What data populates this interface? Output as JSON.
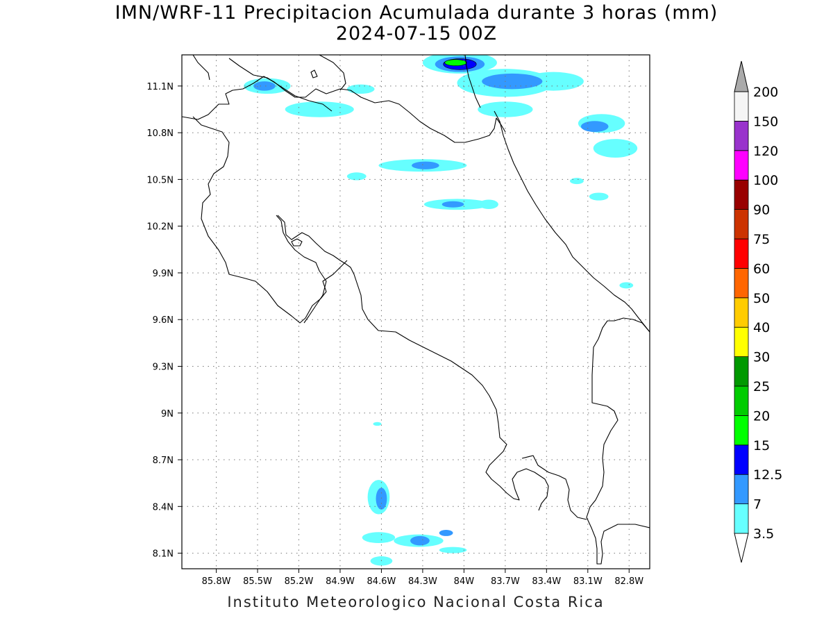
{
  "title": "IMN/WRF-11 Precipitacion Acumulada durante 3 horas (mm)",
  "subtitle": "2024-07-15 00Z",
  "credit": "Instituto Meteorologico Nacional Costa Rica",
  "map": {
    "lon_range": [
      -86.05,
      -82.65
    ],
    "lat_range": [
      8.0,
      11.3
    ],
    "lon_ticks": [
      {
        "value": -85.8,
        "label": "85.8W"
      },
      {
        "value": -85.5,
        "label": "85.5W"
      },
      {
        "value": -85.2,
        "label": "85.2W"
      },
      {
        "value": -84.9,
        "label": "84.9W"
      },
      {
        "value": -84.6,
        "label": "84.6W"
      },
      {
        "value": -84.3,
        "label": "84.3W"
      },
      {
        "value": -84.0,
        "label": "84W"
      },
      {
        "value": -83.7,
        "label": "83.7W"
      },
      {
        "value": -83.4,
        "label": "83.4W"
      },
      {
        "value": -83.1,
        "label": "83.1W"
      },
      {
        "value": -82.8,
        "label": "82.8W"
      }
    ],
    "lat_ticks": [
      {
        "value": 8.1,
        "label": "8.1N"
      },
      {
        "value": 8.4,
        "label": "8.4N"
      },
      {
        "value": 8.7,
        "label": "8.7N"
      },
      {
        "value": 9.0,
        "label": "9N"
      },
      {
        "value": 9.3,
        "label": "9.3N"
      },
      {
        "value": 9.6,
        "label": "9.6N"
      },
      {
        "value": 9.9,
        "label": "9.9N"
      },
      {
        "value": 10.2,
        "label": "10.2N"
      },
      {
        "value": 10.5,
        "label": "10.5N"
      },
      {
        "value": 10.8,
        "label": "10.8N"
      },
      {
        "value": 11.1,
        "label": "11.1N"
      }
    ],
    "grid": true,
    "coastline_color": "#000000",
    "precip_cells": [
      {
        "lon": -84.03,
        "lat": 11.25,
        "rx": 0.27,
        "ry": 0.07,
        "level": 1
      },
      {
        "lon": -83.7,
        "lat": 11.12,
        "rx": 0.35,
        "ry": 0.09,
        "level": 1
      },
      {
        "lon": -83.35,
        "lat": 11.13,
        "rx": 0.22,
        "ry": 0.06,
        "level": 1
      },
      {
        "lon": -83.0,
        "lat": 10.86,
        "rx": 0.17,
        "ry": 0.06,
        "level": 1
      },
      {
        "lon": -82.9,
        "lat": 10.7,
        "rx": 0.16,
        "ry": 0.06,
        "level": 1
      },
      {
        "lon": -83.7,
        "lat": 10.95,
        "rx": 0.2,
        "ry": 0.05,
        "level": 1
      },
      {
        "lon": -85.43,
        "lat": 11.1,
        "rx": 0.17,
        "ry": 0.05,
        "level": 1
      },
      {
        "lon": -85.05,
        "lat": 10.95,
        "rx": 0.25,
        "ry": 0.05,
        "level": 1
      },
      {
        "lon": -84.75,
        "lat": 11.08,
        "rx": 0.1,
        "ry": 0.03,
        "level": 1
      },
      {
        "lon": -84.3,
        "lat": 10.59,
        "rx": 0.32,
        "ry": 0.04,
        "level": 1
      },
      {
        "lon": -84.78,
        "lat": 10.52,
        "rx": 0.07,
        "ry": 0.025,
        "level": 1
      },
      {
        "lon": -84.05,
        "lat": 10.34,
        "rx": 0.24,
        "ry": 0.035,
        "level": 1
      },
      {
        "lon": -83.82,
        "lat": 10.34,
        "rx": 0.07,
        "ry": 0.03,
        "level": 1
      },
      {
        "lon": -83.18,
        "lat": 10.49,
        "rx": 0.05,
        "ry": 0.02,
        "level": 1
      },
      {
        "lon": -83.02,
        "lat": 10.39,
        "rx": 0.07,
        "ry": 0.025,
        "level": 1
      },
      {
        "lon": -82.82,
        "lat": 9.82,
        "rx": 0.05,
        "ry": 0.02,
        "level": 1
      },
      {
        "lon": -84.62,
        "lat": 8.46,
        "rx": 0.08,
        "ry": 0.11,
        "level": 1
      },
      {
        "lon": -84.33,
        "lat": 8.18,
        "rx": 0.18,
        "ry": 0.04,
        "level": 1
      },
      {
        "lon": -84.62,
        "lat": 8.2,
        "rx": 0.12,
        "ry": 0.035,
        "level": 1
      },
      {
        "lon": -84.6,
        "lat": 8.05,
        "rx": 0.08,
        "ry": 0.03,
        "level": 1
      },
      {
        "lon": -84.08,
        "lat": 8.12,
        "rx": 0.1,
        "ry": 0.02,
        "level": 1
      },
      {
        "lon": -84.63,
        "lat": 8.93,
        "rx": 0.03,
        "ry": 0.012,
        "level": 1
      },
      {
        "lon": -84.03,
        "lat": 11.24,
        "rx": 0.18,
        "ry": 0.05,
        "level": 2
      },
      {
        "lon": -83.65,
        "lat": 11.13,
        "rx": 0.22,
        "ry": 0.05,
        "level": 2
      },
      {
        "lon": -83.05,
        "lat": 10.84,
        "rx": 0.1,
        "ry": 0.035,
        "level": 2
      },
      {
        "lon": -85.45,
        "lat": 11.1,
        "rx": 0.08,
        "ry": 0.03,
        "level": 2
      },
      {
        "lon": -84.28,
        "lat": 10.59,
        "rx": 0.1,
        "ry": 0.025,
        "level": 2
      },
      {
        "lon": -84.08,
        "lat": 10.34,
        "rx": 0.08,
        "ry": 0.02,
        "level": 2
      },
      {
        "lon": -84.6,
        "lat": 8.45,
        "rx": 0.04,
        "ry": 0.07,
        "level": 2
      },
      {
        "lon": -84.32,
        "lat": 8.18,
        "rx": 0.07,
        "ry": 0.03,
        "level": 2
      },
      {
        "lon": -84.13,
        "lat": 8.23,
        "rx": 0.05,
        "ry": 0.02,
        "level": 2
      },
      {
        "lon": -84.03,
        "lat": 11.24,
        "rx": 0.12,
        "ry": 0.035,
        "level": 3
      },
      {
        "lon": -84.06,
        "lat": 11.25,
        "rx": 0.08,
        "ry": 0.02,
        "level": 4
      }
    ]
  },
  "colorbar": {
    "colors": [
      "#66ffff",
      "#3399ff",
      "#0000ff",
      "#00ff00",
      "#00cc00",
      "#009900",
      "#ffff00",
      "#ffcc00",
      "#ff6600",
      "#ff0000",
      "#cc3300",
      "#990000",
      "#ff00ff",
      "#9933cc",
      "#f5f5f5",
      "#aaaaaa"
    ],
    "labels": [
      "3.5",
      "7",
      "12.5",
      "15",
      "20",
      "25",
      "30",
      "40",
      "50",
      "60",
      "75",
      "90",
      "100",
      "120",
      "150",
      "200"
    ]
  }
}
